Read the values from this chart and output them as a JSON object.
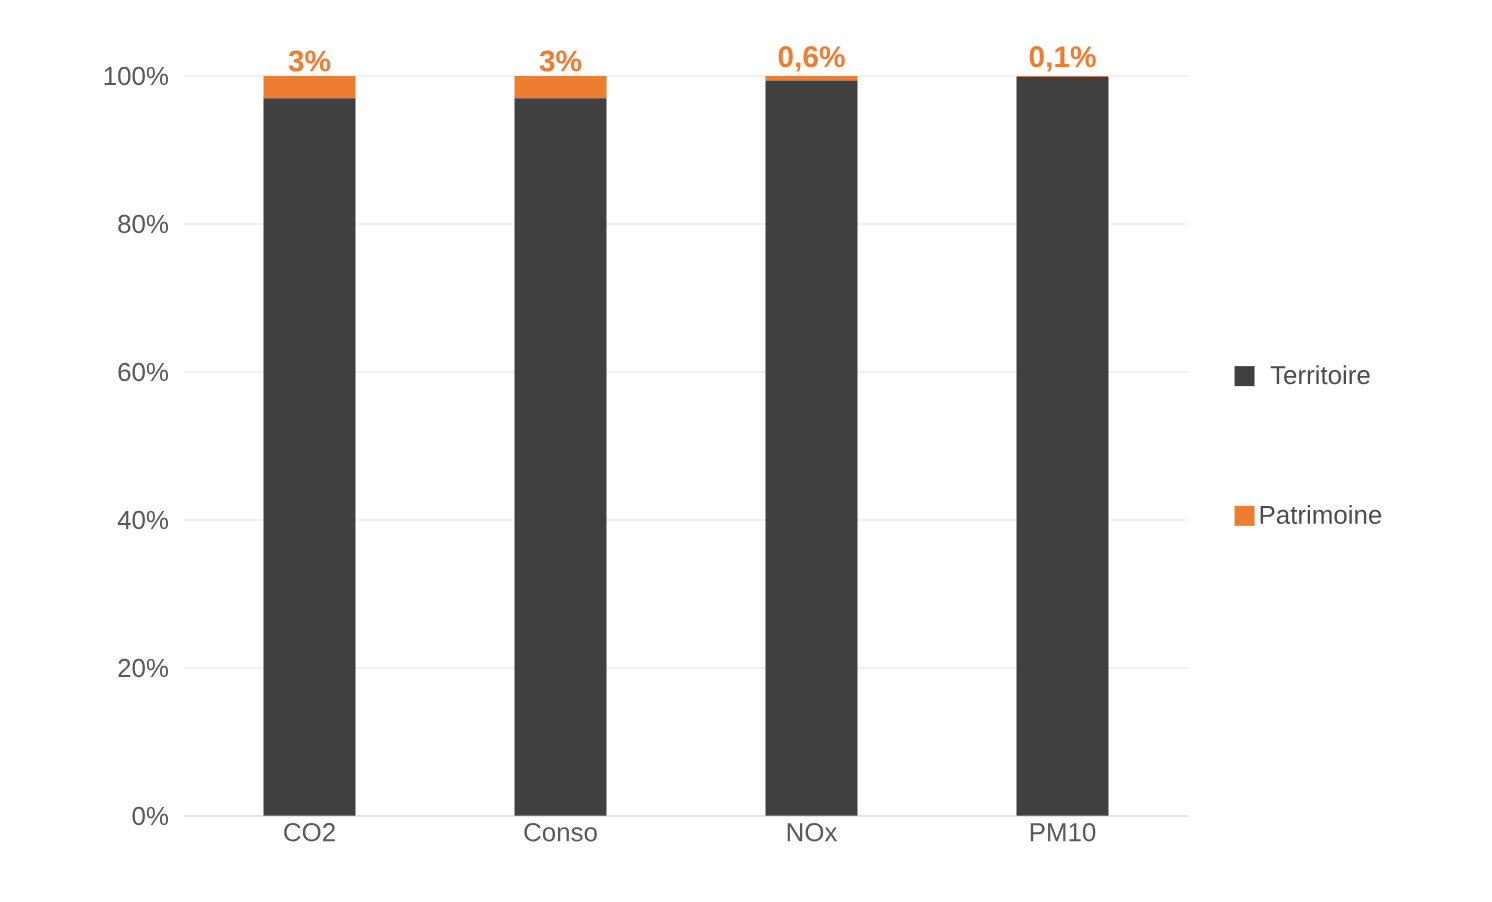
{
  "chart_data": {
    "type": "bar",
    "stacked": true,
    "categories": [
      "CO2",
      "Conso",
      "NOx",
      "PM10"
    ],
    "series": [
      {
        "name": "Territoire",
        "color": "#404040",
        "values": [
          97,
          97,
          99.4,
          99.9
        ]
      },
      {
        "name": "Patrimoine",
        "color": "#ed7d31",
        "values": [
          3,
          3,
          0.6,
          0.1
        ],
        "value_labels": [
          "3%",
          "3%",
          "0,6%",
          "0,1%"
        ]
      }
    ],
    "ylim": [
      0,
      100
    ],
    "yticks": [
      {
        "value": 0,
        "label": "0%"
      },
      {
        "value": 20,
        "label": "20%"
      },
      {
        "value": 40,
        "label": "40%"
      },
      {
        "value": 60,
        "label": "60%"
      },
      {
        "value": 80,
        "label": "80%"
      },
      {
        "value": 100,
        "label": "100%"
      }
    ],
    "grid": "y",
    "legend": "right"
  }
}
